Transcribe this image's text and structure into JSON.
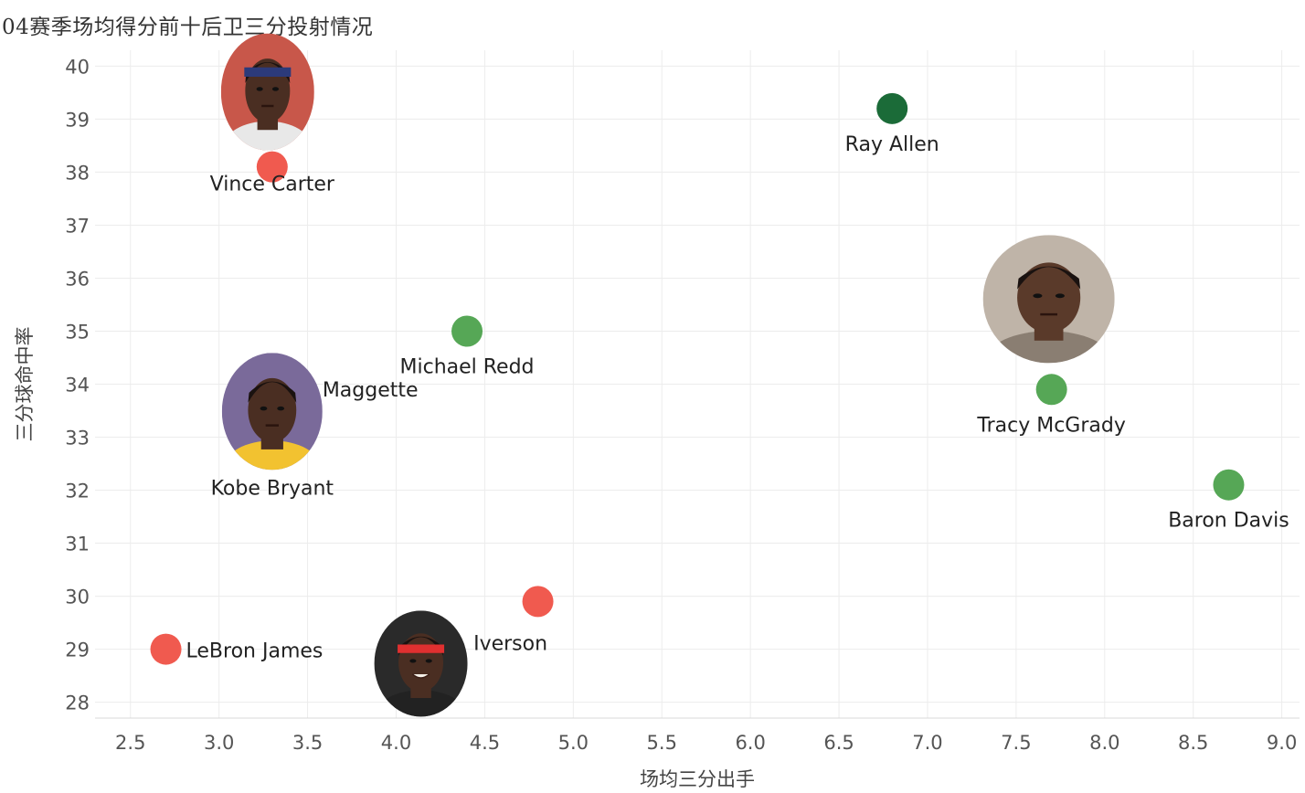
{
  "chart_data": {
    "type": "scatter",
    "title": "04赛季场均得分前十后卫三分投射情况",
    "xlabel": "场均三分出手",
    "ylabel": "三分球命中率",
    "xlim": [
      2.3,
      9.1
    ],
    "ylim": [
      27.7,
      40.3
    ],
    "xticks": [
      "2.5",
      "3.0",
      "3.5",
      "4.0",
      "4.5",
      "5.0",
      "5.5",
      "6.0",
      "6.5",
      "7.0",
      "7.5",
      "8.0",
      "8.5",
      "9.0"
    ],
    "yticks": [
      "28",
      "29",
      "30",
      "31",
      "32",
      "33",
      "34",
      "35",
      "36",
      "37",
      "38",
      "39",
      "40"
    ],
    "grid": true,
    "colors": {
      "red": "#f05a4f",
      "green": "#56a756",
      "dark_green": "#1b6b38"
    },
    "points": [
      {
        "name": "Vince Carter",
        "x": 3.3,
        "y": 38.1,
        "color": "red",
        "label_pos": "below",
        "photo": true,
        "photo_icon": "vince-carter-photo"
      },
      {
        "name": "Ray Allen",
        "x": 6.8,
        "y": 39.2,
        "color": "dark_green",
        "label_pos": "below",
        "photo": false
      },
      {
        "name": "Michael Redd",
        "x": 4.4,
        "y": 35.0,
        "color": "green",
        "label_pos": "below",
        "photo": false
      },
      {
        "name": "Tracy McGrady",
        "x": 7.7,
        "y": 33.9,
        "color": "green",
        "label_pos": "below",
        "photo": true,
        "photo_icon": "tracy-mcgrady-photo"
      },
      {
        "name": "Maggette",
        "x": 3.3,
        "y": 33.8,
        "color": "red",
        "label_pos": "right",
        "photo": false
      },
      {
        "name": "Kobe Bryant",
        "x": 3.3,
        "y": 33.4,
        "color": "red",
        "label_pos": "below",
        "photo": true,
        "photo_icon": "kobe-bryant-photo"
      },
      {
        "name": "Baron Davis",
        "x": 8.7,
        "y": 32.1,
        "color": "green",
        "label_pos": "below",
        "photo": false
      },
      {
        "name": "Iverson",
        "x": 4.8,
        "y": 29.9,
        "color": "red",
        "label_pos": "below",
        "photo": true,
        "photo_icon": "allen-iverson-photo"
      },
      {
        "name": "LeBron James",
        "x": 2.7,
        "y": 29.0,
        "color": "red",
        "label_pos": "right",
        "photo": false
      }
    ]
  }
}
